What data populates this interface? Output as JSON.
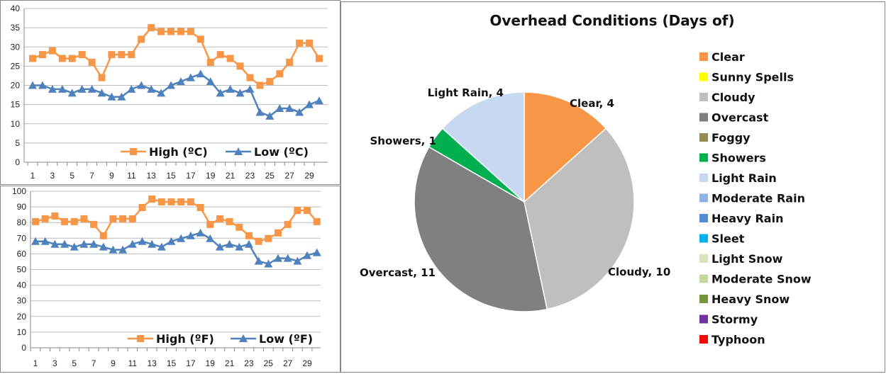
{
  "chart_data": [
    {
      "type": "line",
      "title": "",
      "x": [
        1,
        2,
        3,
        4,
        5,
        6,
        7,
        8,
        9,
        10,
        11,
        12,
        13,
        14,
        15,
        16,
        17,
        18,
        19,
        20,
        21,
        22,
        23,
        24,
        25,
        26,
        27,
        28,
        29,
        30
      ],
      "xticks": [
        1,
        3,
        5,
        7,
        9,
        11,
        13,
        15,
        17,
        19,
        21,
        23,
        25,
        27,
        29
      ],
      "ylim": [
        0,
        40
      ],
      "yticks": [
        0,
        5,
        10,
        15,
        20,
        25,
        30,
        35,
        40
      ],
      "grid": true,
      "legend": "bottom-right",
      "series": [
        {
          "name": "High (ºC)",
          "color": "#f79646",
          "marker": "square",
          "values": [
            27,
            28,
            29,
            27,
            27,
            28,
            26,
            22,
            28,
            28,
            28,
            32,
            35,
            34,
            34,
            34,
            34,
            32,
            26,
            28,
            27,
            25,
            22,
            20,
            21,
            23,
            26,
            31,
            31,
            27
          ]
        },
        {
          "name": "Low (ºC)",
          "color": "#4f81bd",
          "marker": "triangle",
          "values": [
            20,
            20,
            19,
            19,
            18,
            19,
            19,
            18,
            17,
            17,
            19,
            20,
            19,
            18,
            20,
            21,
            22,
            23,
            21,
            18,
            19,
            18,
            19,
            13,
            12,
            14,
            14,
            13,
            15,
            16
          ]
        }
      ]
    },
    {
      "type": "line",
      "title": "",
      "x": [
        1,
        2,
        3,
        4,
        5,
        6,
        7,
        8,
        9,
        10,
        11,
        12,
        13,
        14,
        15,
        16,
        17,
        18,
        19,
        20,
        21,
        22,
        23,
        24,
        25,
        26,
        27,
        28,
        29,
        30
      ],
      "xticks": [
        1,
        3,
        5,
        7,
        9,
        11,
        13,
        15,
        17,
        19,
        21,
        23,
        25,
        27,
        29
      ],
      "ylim": [
        0,
        100
      ],
      "yticks": [
        0,
        10,
        20,
        30,
        40,
        50,
        60,
        70,
        80,
        90,
        100
      ],
      "grid": true,
      "legend": "bottom-right",
      "series": [
        {
          "name": "High (ºF)",
          "color": "#f79646",
          "marker": "square",
          "values": [
            80.6,
            82.4,
            84.2,
            80.6,
            80.6,
            82.4,
            78.8,
            71.6,
            82.4,
            82.4,
            82.4,
            89.6,
            95,
            93.2,
            93.2,
            93.2,
            93.2,
            89.6,
            78.8,
            82.4,
            80.6,
            77,
            71.6,
            68,
            69.8,
            73.4,
            78.8,
            87.8,
            87.8,
            80.6
          ]
        },
        {
          "name": "Low (ºF)",
          "color": "#4f81bd",
          "marker": "triangle",
          "values": [
            68,
            68,
            66.2,
            66.2,
            64.4,
            66.2,
            66.2,
            64.4,
            62.6,
            62.6,
            66.2,
            68,
            66.2,
            64.4,
            68,
            69.8,
            71.6,
            73.4,
            69.8,
            64.4,
            66.2,
            64.4,
            66.2,
            55.4,
            53.6,
            57.2,
            57.2,
            55.4,
            59,
            60.8
          ]
        }
      ]
    },
    {
      "type": "pie",
      "title": "Overhead Conditions (Days of)",
      "legend": "right",
      "slices": [
        {
          "label": "Clear",
          "value": 4,
          "color": "#f79646"
        },
        {
          "label": "Sunny Spells",
          "value": 0,
          "color": "#ffff00"
        },
        {
          "label": "Cloudy",
          "value": 10,
          "color": "#bfbfbf"
        },
        {
          "label": "Overcast",
          "value": 11,
          "color": "#808080"
        },
        {
          "label": "Foggy",
          "value": 0,
          "color": "#948a54"
        },
        {
          "label": "Showers",
          "value": 1,
          "color": "#00b050"
        },
        {
          "label": "Light Rain",
          "value": 4,
          "color": "#c6d9f0"
        },
        {
          "label": "Moderate Rain",
          "value": 0,
          "color": "#8db3e2"
        },
        {
          "label": "Heavy Rain",
          "value": 0,
          "color": "#558ed5"
        },
        {
          "label": "Sleet",
          "value": 0,
          "color": "#00b0f0"
        },
        {
          "label": "Light Snow",
          "value": 0,
          "color": "#d7e4bd"
        },
        {
          "label": "Moderate Snow",
          "value": 0,
          "color": "#c3d69b"
        },
        {
          "label": "Heavy Snow",
          "value": 0,
          "color": "#77933c"
        },
        {
          "label": "Stormy",
          "value": 0,
          "color": "#7030a0"
        },
        {
          "label": "Typhoon",
          "value": 0,
          "color": "#ff0000"
        }
      ],
      "data_labels": [
        "Clear, 4",
        "Cloudy, 10",
        "Overcast, 11",
        "Showers, 1",
        "Light Rain, 4"
      ]
    }
  ]
}
